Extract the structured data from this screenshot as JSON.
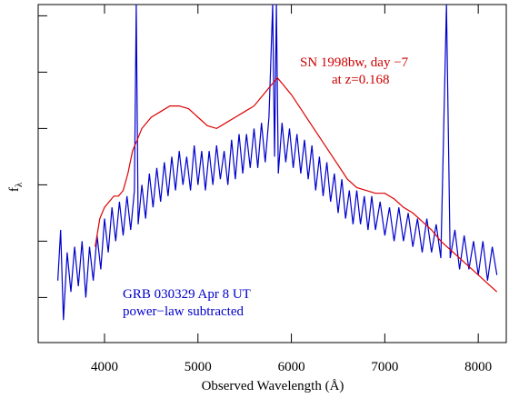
{
  "chart_data": {
    "type": "line",
    "xlabel": "Observed Wavelength (Å)",
    "ylabel": "f",
    "ylabel_subscript": "λ",
    "xlim": [
      3290,
      8300
    ],
    "ylim": [
      -0.8,
      5.2
    ],
    "xticks": [
      4000,
      5000,
      6000,
      7000,
      8000
    ],
    "yticks": [
      0,
      1,
      2,
      3,
      4,
      5
    ],
    "annotations": [
      {
        "text": "SN 1998bw, day −7",
        "color": "#cc0000"
      },
      {
        "text": "at z=0.168",
        "color": "#cc0000"
      },
      {
        "text": "GRB 030329 Apr 8 UT",
        "color": "#0000cc"
      },
      {
        "text": "power−law subtracted",
        "color": "#0000cc"
      }
    ],
    "series": [
      {
        "color": "#0000cc",
        "x": [
          3500,
          3530,
          3560,
          3600,
          3640,
          3680,
          3720,
          3760,
          3800,
          3840,
          3880,
          3920,
          3960,
          4000,
          4040,
          4080,
          4120,
          4160,
          4200,
          4240,
          4280,
          4320,
          4340,
          4360,
          4400,
          4440,
          4480,
          4520,
          4560,
          4600,
          4640,
          4680,
          4720,
          4760,
          4800,
          4840,
          4880,
          4920,
          4960,
          5000,
          5040,
          5080,
          5120,
          5160,
          5200,
          5240,
          5280,
          5320,
          5360,
          5400,
          5440,
          5480,
          5520,
          5560,
          5600,
          5640,
          5680,
          5720,
          5760,
          5800,
          5820,
          5840,
          5860,
          5900,
          5940,
          5980,
          6020,
          6060,
          6100,
          6140,
          6180,
          6220,
          6260,
          6300,
          6340,
          6380,
          6420,
          6460,
          6500,
          6540,
          6580,
          6620,
          6660,
          6700,
          6740,
          6780,
          6820,
          6860,
          6900,
          6950,
          7000,
          7050,
          7100,
          7150,
          7200,
          7250,
          7300,
          7350,
          7400,
          7450,
          7500,
          7550,
          7600,
          7660,
          7700,
          7750,
          7800,
          7850,
          7900,
          7950,
          8000,
          8050,
          8100,
          8150,
          8200
        ],
        "values": [
          0.3,
          1.2,
          -0.4,
          0.8,
          0.1,
          0.9,
          0.2,
          1.0,
          0.0,
          0.9,
          0.3,
          1.1,
          0.5,
          1.4,
          0.8,
          1.6,
          1.0,
          1.7,
          1.1,
          1.8,
          1.2,
          1.9,
          5.2,
          1.3,
          2.0,
          1.4,
          2.2,
          1.6,
          2.3,
          1.7,
          2.4,
          1.8,
          2.5,
          1.9,
          2.6,
          2.0,
          2.5,
          1.9,
          2.7,
          2.0,
          2.6,
          1.9,
          2.6,
          2.0,
          2.7,
          2.1,
          2.6,
          2.0,
          2.8,
          2.1,
          2.9,
          2.2,
          2.9,
          2.3,
          3.0,
          2.3,
          3.1,
          2.4,
          3.2,
          5.2,
          2.5,
          5.2,
          2.2,
          3.1,
          2.4,
          3.0,
          2.3,
          2.9,
          2.2,
          2.8,
          2.1,
          2.7,
          1.9,
          2.5,
          1.8,
          2.4,
          1.7,
          2.2,
          1.5,
          2.1,
          1.4,
          1.9,
          1.3,
          1.9,
          1.3,
          1.8,
          1.2,
          1.8,
          1.2,
          1.7,
          1.1,
          1.6,
          1.0,
          1.6,
          1.0,
          1.5,
          0.9,
          1.4,
          0.8,
          1.4,
          0.8,
          1.3,
          0.7,
          5.2,
          0.7,
          1.2,
          0.5,
          1.1,
          0.5,
          1.0,
          0.4,
          1.0,
          0.3,
          0.9,
          0.4
        ]
      },
      {
        "color": "#dd0000",
        "x": [
          3900,
          3950,
          4000,
          4050,
          4100,
          4150,
          4200,
          4250,
          4300,
          4350,
          4400,
          4450,
          4500,
          4600,
          4700,
          4800,
          4900,
          5000,
          5100,
          5200,
          5300,
          5400,
          5500,
          5600,
          5700,
          5800,
          5850,
          5900,
          6000,
          6100,
          6200,
          6300,
          6400,
          6500,
          6600,
          6700,
          6800,
          6900,
          7000,
          7100,
          7200,
          7300,
          7400,
          7500,
          7600,
          7700,
          7800,
          7900,
          8000,
          8100,
          8200
        ],
        "values": [
          0.9,
          1.4,
          1.6,
          1.7,
          1.8,
          1.8,
          1.9,
          2.2,
          2.6,
          2.8,
          3.0,
          3.1,
          3.2,
          3.3,
          3.4,
          3.4,
          3.35,
          3.2,
          3.05,
          3.0,
          3.1,
          3.2,
          3.3,
          3.4,
          3.6,
          3.8,
          3.9,
          3.8,
          3.6,
          3.35,
          3.1,
          2.85,
          2.6,
          2.35,
          2.1,
          1.95,
          1.9,
          1.85,
          1.85,
          1.75,
          1.6,
          1.5,
          1.35,
          1.2,
          1.0,
          0.85,
          0.7,
          0.55,
          0.4,
          0.25,
          0.1
        ]
      }
    ]
  }
}
